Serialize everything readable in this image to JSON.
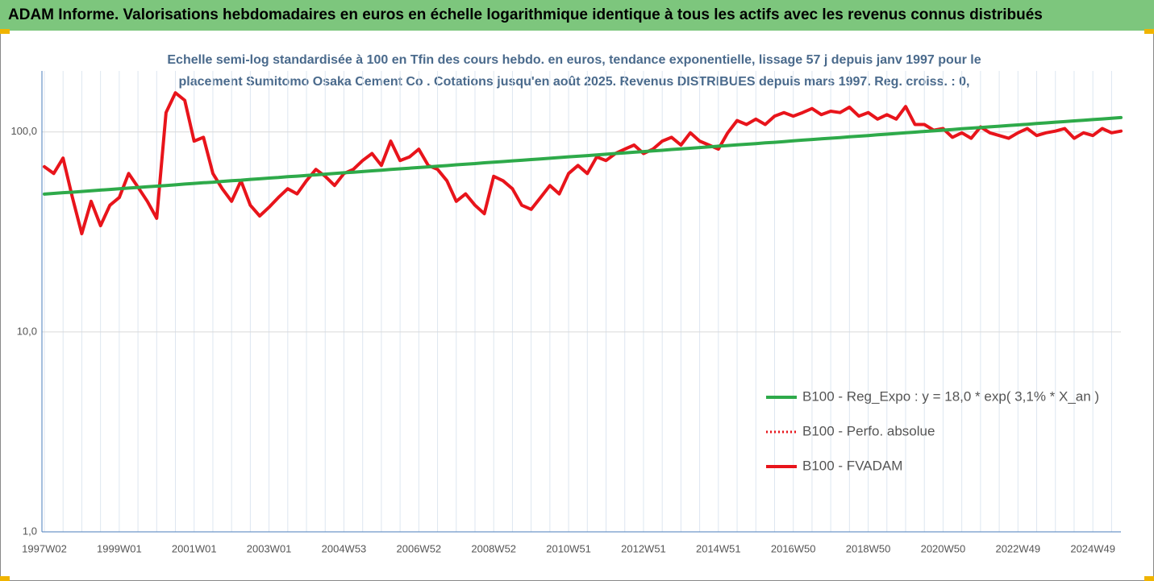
{
  "chart_data": {
    "type": "line",
    "title": "ADAM Informe. Valorisations hebdomadaires en euros en échelle logarithmique identique à tous les actifs avec les revenus connus distribués",
    "subtitle": [
      "Echelle semi-log standardisée à 100 en Tfin des cours hebdo. en euros, tendance exponentielle, lissage 57 j depuis janv 1997 pour le",
      "placement Sumitomo Osaka Cement Co . Cotations jusqu'en août 2025. Revenus DISTRIBUES depuis mars 1997. Reg. croiss. : 0,"
    ],
    "log_y": true,
    "grid": true,
    "legend": "right",
    "ylim": [
      1,
      202
    ],
    "yticks": [
      {
        "value": 1,
        "label": "1,0"
      },
      {
        "value": 10,
        "label": "10,0"
      },
      {
        "value": 100,
        "label": "100,0"
      }
    ],
    "categories": [
      "1997W02",
      null,
      null,
      null,
      null,
      null,
      null,
      null,
      "1999W01",
      null,
      null,
      null,
      null,
      null,
      null,
      null,
      "2001W01",
      null,
      null,
      null,
      null,
      null,
      null,
      null,
      "2003W01",
      null,
      null,
      null,
      null,
      null,
      null,
      null,
      "2004W53",
      null,
      null,
      null,
      null,
      null,
      null,
      null,
      "2006W52",
      null,
      null,
      null,
      null,
      null,
      null,
      null,
      "2008W52",
      null,
      null,
      null,
      null,
      null,
      null,
      null,
      "2010W51",
      null,
      null,
      null,
      null,
      null,
      null,
      null,
      "2012W51",
      null,
      null,
      null,
      null,
      null,
      null,
      null,
      "2014W51",
      null,
      null,
      null,
      null,
      null,
      null,
      null,
      "2016W50",
      null,
      null,
      null,
      null,
      null,
      null,
      null,
      "2018W50",
      null,
      null,
      null,
      null,
      null,
      null,
      null,
      "2020W50",
      null,
      null,
      null,
      null,
      null,
      null,
      null,
      "2022W49",
      null,
      null,
      null,
      null,
      null,
      null,
      null,
      "2024W49",
      null,
      null,
      null
    ],
    "series": [
      {
        "name": "B100 - Reg_Expo : y = 18,0 * exp( 3,1% *  X_an )",
        "color": "#2eaa4a",
        "style": "solid",
        "values": [
          48.9,
          49.3,
          49.7,
          50.0,
          50.4,
          50.8,
          51.2,
          51.6,
          52.0,
          52.4,
          52.8,
          53.2,
          53.6,
          54.0,
          54.4,
          54.9,
          55.3,
          55.7,
          56.1,
          56.6,
          57.0,
          57.4,
          57.9,
          58.3,
          58.8,
          59.2,
          59.7,
          60.1,
          60.6,
          61.0,
          61.5,
          62.0,
          62.5,
          62.9,
          63.4,
          63.9,
          64.4,
          64.9,
          65.4,
          65.9,
          66.4,
          66.9,
          67.4,
          67.9,
          68.5,
          69.0,
          69.5,
          70.1,
          70.6,
          71.1,
          71.7,
          72.2,
          72.8,
          73.3,
          73.9,
          74.5,
          75.1,
          75.6,
          76.2,
          76.8,
          77.4,
          78.0,
          78.6,
          79.2,
          79.8,
          80.4,
          81.0,
          81.7,
          82.3,
          82.9,
          83.6,
          84.2,
          84.9,
          85.5,
          86.2,
          86.8,
          87.5,
          88.2,
          88.8,
          89.5,
          90.3,
          91.0,
          91.7,
          92.4,
          93.1,
          93.8,
          94.6,
          95.3,
          96.0,
          96.8,
          97.5,
          98.3,
          99.0,
          99.8,
          100.6,
          101.3,
          102.1,
          102.9,
          103.7,
          104.5,
          105.2,
          106.1,
          106.9,
          107.7,
          108.5,
          109.3,
          110.2,
          111.0,
          111.9,
          112.7,
          113.6,
          114.5,
          115.3,
          116.2,
          117.1,
          118.0
        ]
      },
      {
        "name": "B100 - Perfo. absolue",
        "color": "#e8141b",
        "style": "dotted",
        "values": [
          67,
          62,
          74,
          47,
          31,
          45,
          34,
          43,
          47,
          62,
          53,
          45,
          37,
          125,
          157,
          144,
          90,
          94,
          62,
          52,
          45,
          57,
          43,
          38,
          42,
          47,
          52,
          49,
          57,
          65,
          60,
          54,
          62,
          65,
          72,
          78,
          68,
          90,
          72,
          75,
          82,
          68,
          65,
          57,
          45,
          49,
          43,
          39,
          60,
          57,
          52,
          43,
          41,
          47,
          54,
          49,
          62,
          68,
          62,
          75,
          72,
          78,
          82,
          86,
          78,
          82,
          90,
          94,
          86,
          99,
          90,
          86,
          82,
          99,
          114,
          109,
          116,
          109,
          120,
          125,
          120,
          125,
          131,
          122,
          127,
          125,
          133,
          120,
          125,
          116,
          122,
          116,
          134,
          109,
          109,
          102,
          104,
          94,
          99,
          93,
          106,
          99,
          96,
          93,
          99,
          104,
          96,
          99,
          101,
          104,
          93,
          99,
          96,
          104,
          99,
          101
        ]
      },
      {
        "name": "B100 - FVADAM",
        "color": "#e8141b",
        "style": "solid",
        "values": [
          67,
          62,
          74,
          47,
          31,
          45,
          34,
          43,
          47,
          62,
          53,
          45,
          37,
          125,
          157,
          144,
          90,
          94,
          62,
          52,
          45,
          57,
          43,
          38,
          42,
          47,
          52,
          49,
          57,
          65,
          60,
          54,
          62,
          65,
          72,
          78,
          68,
          90,
          72,
          75,
          82,
          68,
          65,
          57,
          45,
          49,
          43,
          39,
          60,
          57,
          52,
          43,
          41,
          47,
          54,
          49,
          62,
          68,
          62,
          75,
          72,
          78,
          82,
          86,
          78,
          82,
          90,
          94,
          86,
          99,
          90,
          86,
          82,
          99,
          114,
          109,
          116,
          109,
          120,
          125,
          120,
          125,
          131,
          122,
          127,
          125,
          133,
          120,
          125,
          116,
          122,
          116,
          134,
          109,
          109,
          102,
          104,
          94,
          99,
          93,
          106,
          99,
          96,
          93,
          99,
          104,
          96,
          99,
          101,
          104,
          93,
          99,
          96,
          104,
          99,
          101
        ]
      }
    ]
  }
}
